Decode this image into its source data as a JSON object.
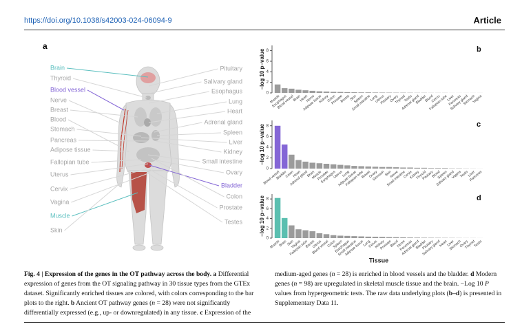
{
  "header": {
    "doi": "https://doi.org/10.1038/s42003-024-06094-9",
    "kind": "Article"
  },
  "panel_a": {
    "label": "a",
    "left_labels": [
      {
        "text": "Brain",
        "color": "#5bbfbf"
      },
      {
        "text": "Thyroid",
        "color": "#a6a6a6"
      },
      {
        "text": "Blood vessel",
        "color": "#8466d6"
      },
      {
        "text": "Nerve",
        "color": "#a6a6a6"
      },
      {
        "text": "Breast",
        "color": "#a6a6a6"
      },
      {
        "text": "Blood",
        "color": "#a6a6a6"
      },
      {
        "text": "Stomach",
        "color": "#a6a6a6"
      },
      {
        "text": "Pancreas",
        "color": "#a6a6a6"
      },
      {
        "text": "Adipose tissue",
        "color": "#a6a6a6"
      },
      {
        "text": "Fallopian tube",
        "color": "#a6a6a6"
      },
      {
        "text": "Uterus",
        "color": "#a6a6a6"
      },
      {
        "text": "Cervix",
        "color": "#a6a6a6"
      },
      {
        "text": "Vagina",
        "color": "#a6a6a6"
      },
      {
        "text": "Muscle",
        "color": "#5bbfbf"
      },
      {
        "text": "Skin",
        "color": "#a6a6a6"
      }
    ],
    "right_labels": [
      {
        "text": "Pituitary",
        "color": "#a6a6a6"
      },
      {
        "text": "Salivary gland",
        "color": "#a6a6a6"
      },
      {
        "text": "Esophagus",
        "color": "#a6a6a6"
      },
      {
        "text": "Lung",
        "color": "#a6a6a6"
      },
      {
        "text": "Heart",
        "color": "#a6a6a6"
      },
      {
        "text": "Adrenal gland",
        "color": "#a6a6a6"
      },
      {
        "text": "Spleen",
        "color": "#a6a6a6"
      },
      {
        "text": "Liver",
        "color": "#a6a6a6"
      },
      {
        "text": "Kidney",
        "color": "#a6a6a6"
      },
      {
        "text": "Small intestine",
        "color": "#a6a6a6"
      },
      {
        "text": "Ovary",
        "color": "#a6a6a6"
      },
      {
        "text": "Bladder",
        "color": "#8466d6"
      },
      {
        "text": "Colon",
        "color": "#a6a6a6"
      },
      {
        "text": "Prostate",
        "color": "#a6a6a6"
      },
      {
        "text": "Testes",
        "color": "#a6a6a6"
      }
    ]
  },
  "chart_data": [
    {
      "type": "bar",
      "panel": "b",
      "ylabel": "−log 10 p−value",
      "ylim": [
        0,
        9
      ],
      "yticks": [
        0,
        2,
        4,
        6,
        8
      ],
      "categories": [
        "Muscle",
        "Esophagus",
        "Blood vessel",
        "Brain",
        "Heart",
        "Nerve",
        "Adipose tissue",
        "Kidney",
        "Colon",
        "Prostate",
        "Breast",
        "Skin",
        "Spleen",
        "Small intestine",
        "Lung",
        "Uterus",
        "Pituitary",
        "Ovary",
        "Thyroid",
        "Testis",
        "Adrenal gland",
        "Bladder",
        "Blood",
        "Cervix",
        "Fallopian tube",
        "Liver",
        "Pancreas",
        "Salivary gland",
        "Stomach",
        "Vagina"
      ],
      "values": [
        1.6,
        0.9,
        0.8,
        0.6,
        0.5,
        0.4,
        0.3,
        0.25,
        0.2,
        0.18,
        0.15,
        0.12,
        0.1,
        0.1,
        0.08,
        0.07,
        0.06,
        0.05,
        0.05,
        0.04,
        0.03,
        0.03,
        0.02,
        0.02,
        0.02,
        0.01,
        0.01,
        0.01,
        0.01,
        0.01
      ],
      "colors": [
        "#9b9b9b",
        "#9b9b9b",
        "#9b9b9b",
        "#9b9b9b",
        "#9b9b9b",
        "#9b9b9b",
        "#9b9b9b",
        "#9b9b9b",
        "#9b9b9b",
        "#9b9b9b",
        "#9b9b9b",
        "#9b9b9b",
        "#9b9b9b",
        "#9b9b9b",
        "#9b9b9b",
        "#9b9b9b",
        "#9b9b9b",
        "#9b9b9b",
        "#9b9b9b",
        "#9b9b9b",
        "#9b9b9b",
        "#9b9b9b",
        "#9b9b9b",
        "#9b9b9b",
        "#9b9b9b",
        "#9b9b9b",
        "#9b9b9b",
        "#9b9b9b",
        "#9b9b9b",
        "#9b9b9b"
      ]
    },
    {
      "type": "bar",
      "panel": "c",
      "ylabel": "−log 10 p−value",
      "ylim": [
        0,
        9
      ],
      "yticks": [
        0,
        2,
        4,
        6,
        8
      ],
      "categories": [
        "Blood vessel",
        "Bladder",
        "Colon",
        "Heart",
        "Adrenal gland",
        "Brain",
        "Muscle",
        "Prostate",
        "Esophagus",
        "Uterus",
        "Lung",
        "Adipose tissue",
        "Fallopian tube",
        "Breast",
        "Ovary",
        "Stomach",
        "Skin",
        "Nerve",
        "Small intestine",
        "Cervix",
        "Kidney",
        "Thyroid",
        "Pituitary",
        "Blood",
        "Spleen",
        "Salivary gland",
        "Vagina",
        "Testis",
        "Liver",
        "Pancreas"
      ],
      "values": [
        8.0,
        4.5,
        2.6,
        1.6,
        1.3,
        1.1,
        1.0,
        0.9,
        0.8,
        0.7,
        0.6,
        0.5,
        0.45,
        0.4,
        0.35,
        0.3,
        0.3,
        0.25,
        0.2,
        0.2,
        0.15,
        0.15,
        0.1,
        0.1,
        0.1,
        0.05,
        0.05,
        0.03,
        0.02,
        0.01
      ],
      "colors": [
        "#8466d6",
        "#8466d6",
        "#9b9b9b",
        "#9b9b9b",
        "#9b9b9b",
        "#9b9b9b",
        "#9b9b9b",
        "#9b9b9b",
        "#9b9b9b",
        "#9b9b9b",
        "#9b9b9b",
        "#9b9b9b",
        "#9b9b9b",
        "#9b9b9b",
        "#9b9b9b",
        "#9b9b9b",
        "#9b9b9b",
        "#9b9b9b",
        "#9b9b9b",
        "#9b9b9b",
        "#9b9b9b",
        "#9b9b9b",
        "#9b9b9b",
        "#9b9b9b",
        "#9b9b9b",
        "#9b9b9b",
        "#9b9b9b",
        "#9b9b9b",
        "#9b9b9b",
        "#9b9b9b"
      ]
    },
    {
      "type": "bar",
      "panel": "d",
      "ylabel": "−log 10 p−value",
      "xlabel": "Tissue",
      "ylim": [
        0,
        9
      ],
      "yticks": [
        0,
        2,
        4,
        6,
        8
      ],
      "categories": [
        "Muscle",
        "Brain",
        "Skin",
        "Vagina",
        "Fallopian tube",
        "Breast",
        "Uterus",
        "Blood vessel",
        "Colon",
        "Spleen",
        "Esophagus",
        "Small intestine",
        "Adipose tissue",
        "Lung",
        "Cervix",
        "Kidney",
        "Prostate",
        "Blood",
        "Nerve",
        "Pancreas",
        "Adrenal gland",
        "Bladder",
        "Pituitary",
        "Salivary gland",
        "Heart",
        "Liver",
        "Stomach",
        "Ovary",
        "Thyroid",
        "Testis"
      ],
      "values": [
        8.2,
        4.1,
        2.6,
        1.8,
        1.6,
        1.4,
        1.0,
        0.8,
        0.6,
        0.5,
        0.45,
        0.4,
        0.35,
        0.3,
        0.28,
        0.25,
        0.2,
        0.18,
        0.15,
        0.12,
        0.1,
        0.08,
        0.07,
        0.06,
        0.05,
        0.04,
        0.03,
        0.02,
        0.02,
        0.01
      ],
      "colors": [
        "#5bbfb0",
        "#5bbfb0",
        "#9b9b9b",
        "#9b9b9b",
        "#9b9b9b",
        "#9b9b9b",
        "#9b9b9b",
        "#9b9b9b",
        "#9b9b9b",
        "#9b9b9b",
        "#9b9b9b",
        "#9b9b9b",
        "#9b9b9b",
        "#9b9b9b",
        "#9b9b9b",
        "#9b9b9b",
        "#9b9b9b",
        "#9b9b9b",
        "#9b9b9b",
        "#9b9b9b",
        "#9b9b9b",
        "#9b9b9b",
        "#9b9b9b",
        "#9b9b9b",
        "#9b9b9b",
        "#9b9b9b",
        "#9b9b9b",
        "#9b9b9b",
        "#9b9b9b",
        "#9b9b9b"
      ]
    }
  ],
  "caption": {
    "segments": [
      {
        "text": "Fig. 4 | Expression of the genes in the OT pathway across the body.",
        "style": "bold"
      },
      {
        "text": " "
      },
      {
        "text": "a",
        "style": "bold"
      },
      {
        "text": " Differential expression of genes from the OT signaling pathway in 30 tissue types from the GTEx dataset. Significantly enriched tissues are colored, with colors corresponding to the bar plots to the right. "
      },
      {
        "text": "b",
        "style": "bold"
      },
      {
        "text": " Ancient OT pathway genes ("
      },
      {
        "text": "n",
        "style": "italic"
      },
      {
        "text": " = 28) were not significantly differentially expressed (e.g., up- or downregulated) in any tissue. "
      },
      {
        "text": "c",
        "style": "bold"
      },
      {
        "text": " Expression of the medium-aged genes ("
      },
      {
        "text": "n",
        "style": "italic"
      },
      {
        "text": " = 28) is enriched in blood vessels and the bladder. "
      },
      {
        "text": "d",
        "style": "bold"
      },
      {
        "text": " Modern genes ("
      },
      {
        "text": "n",
        "style": "italic"
      },
      {
        "text": " = 98) are upregulated in skeletal muscle tissue and the brain. −Log 10 "
      },
      {
        "text": "P",
        "style": "italic"
      },
      {
        "text": " values from hypergeometric tests. The raw data underlying plots ("
      },
      {
        "text": "b–d",
        "style": "bold"
      },
      {
        "text": ") is presented in Supplementary Data 11."
      }
    ]
  }
}
